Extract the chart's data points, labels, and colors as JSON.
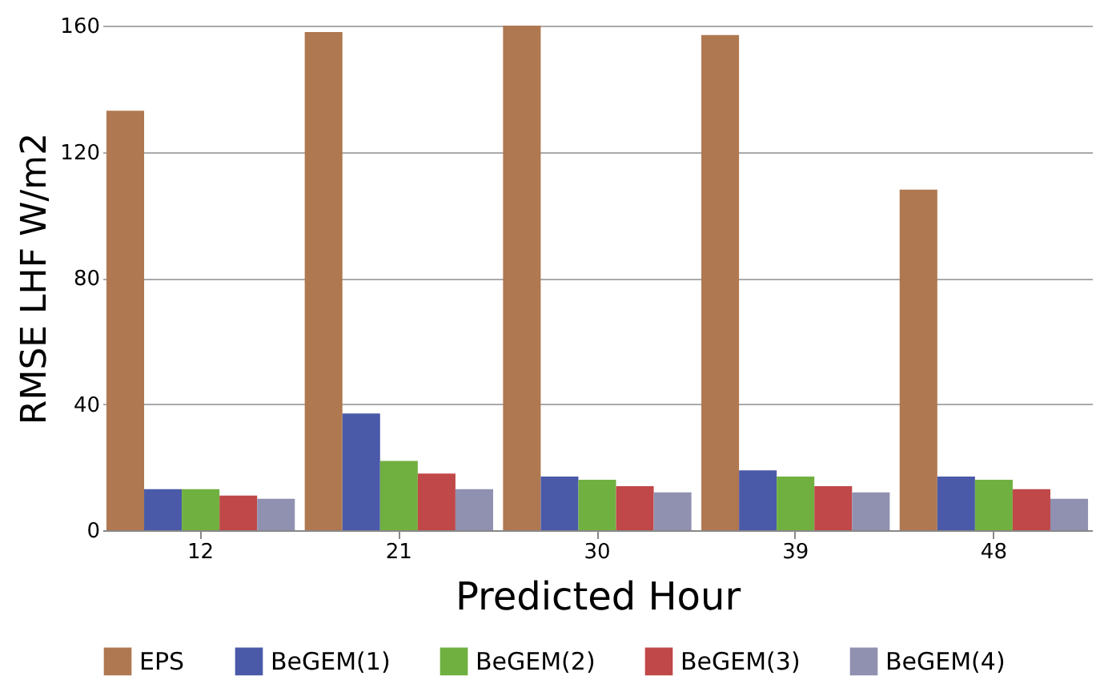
{
  "chart_data": {
    "type": "bar",
    "xlabel": "Predicted Hour",
    "ylabel": "RMSE LHF W/m2",
    "categories": [
      "12",
      "21",
      "30",
      "39",
      "48"
    ],
    "series": [
      {
        "name": "EPS",
        "color": "#b07850",
        "values": [
          133,
          158,
          160,
          157,
          108
        ]
      },
      {
        "name": "BeGEM(1)",
        "color": "#4a5aa8",
        "values": [
          13,
          37,
          17,
          19,
          17
        ]
      },
      {
        "name": "BeGEM(2)",
        "color": "#70b040",
        "values": [
          13,
          22,
          16,
          17,
          16
        ]
      },
      {
        "name": "BeGEM(3)",
        "color": "#c04848",
        "values": [
          11,
          18,
          14,
          14,
          13
        ]
      },
      {
        "name": "BeGEM(4)",
        "color": "#9090b0",
        "values": [
          10,
          13,
          12,
          12,
          10
        ]
      }
    ],
    "ylim": [
      0,
      160
    ],
    "yticks": [
      0,
      40,
      80,
      120,
      160
    ],
    "grid": "y",
    "legend": "bottom"
  }
}
